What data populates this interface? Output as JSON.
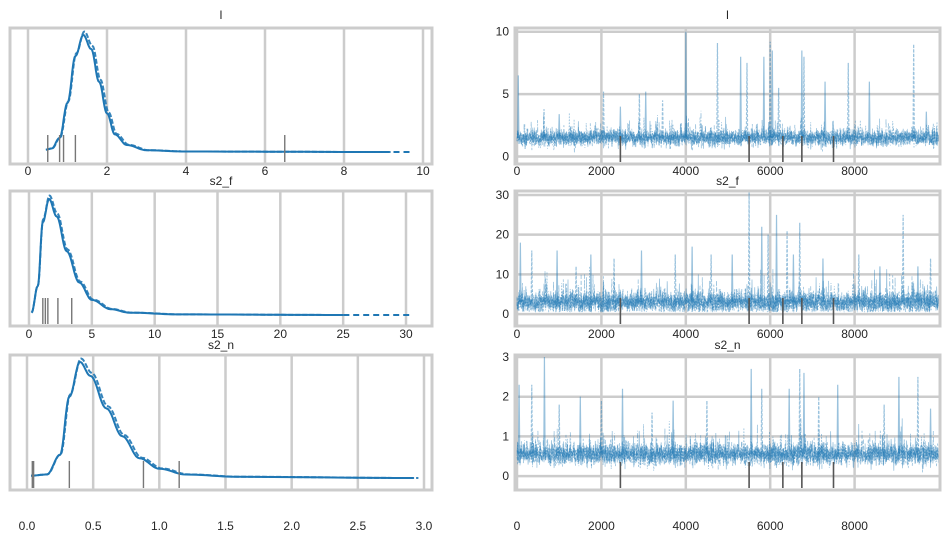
{
  "chart_data": [
    {
      "type": "line",
      "kind": "kde",
      "title": "l",
      "xlim": [
        0,
        10
      ],
      "xticks": [
        0,
        2,
        4,
        6,
        8,
        10
      ],
      "grid": "vertical",
      "color": "#1f77b4",
      "kde": [
        [
          0.45,
          0.02
        ],
        [
          0.6,
          0.03
        ],
        [
          0.8,
          0.12
        ],
        [
          1.0,
          0.42
        ],
        [
          1.2,
          0.82
        ],
        [
          1.4,
          1.0
        ],
        [
          1.6,
          0.88
        ],
        [
          1.8,
          0.6
        ],
        [
          2.0,
          0.33
        ],
        [
          2.2,
          0.15
        ],
        [
          2.5,
          0.06
        ],
        [
          3.0,
          0.015
        ],
        [
          4.0,
          0.004
        ],
        [
          9.0,
          0.0
        ]
      ],
      "tail_dashed_to": 9.7,
      "rug": [
        0.5,
        0.8,
        0.9,
        1.2,
        6.5
      ]
    },
    {
      "type": "line",
      "kind": "kde",
      "title": "s2_f",
      "xlim": [
        0,
        30
      ],
      "xticks": [
        0,
        5,
        10,
        15,
        20,
        25,
        30
      ],
      "grid": "vertical",
      "color": "#1f77b4",
      "kde": [
        [
          0.2,
          0.02
        ],
        [
          0.7,
          0.25
        ],
        [
          1.1,
          0.8
        ],
        [
          1.6,
          1.0
        ],
        [
          2.2,
          0.85
        ],
        [
          3.0,
          0.55
        ],
        [
          4.0,
          0.28
        ],
        [
          5.0,
          0.13
        ],
        [
          6.5,
          0.05
        ],
        [
          8.0,
          0.02
        ],
        [
          12.0,
          0.005
        ],
        [
          25.0,
          0.0
        ]
      ],
      "tail_dashed_to": 30.5,
      "rug": [
        1.1,
        1.3,
        1.5,
        2.3,
        3.4
      ]
    },
    {
      "type": "line",
      "kind": "kde",
      "title": "s2_n",
      "xlim": [
        0,
        3
      ],
      "xticks": [
        0.0,
        0.5,
        1.0,
        1.5,
        2.0,
        2.5,
        3.0
      ],
      "xticklabels": [
        "0.0",
        "0.5",
        "1.0",
        "1.5",
        "2.0",
        "2.5",
        "3.0"
      ],
      "grid": "vertical",
      "color": "#1f77b4",
      "kde": [
        [
          0.03,
          0.02
        ],
        [
          0.15,
          0.03
        ],
        [
          0.25,
          0.2
        ],
        [
          0.32,
          0.7
        ],
        [
          0.4,
          1.0
        ],
        [
          0.48,
          0.88
        ],
        [
          0.6,
          0.6
        ],
        [
          0.72,
          0.36
        ],
        [
          0.85,
          0.17
        ],
        [
          1.0,
          0.08
        ],
        [
          1.2,
          0.03
        ],
        [
          1.6,
          0.01
        ],
        [
          2.9,
          0.0
        ]
      ],
      "tail_dashed_to": 2.92,
      "rug": [
        0.04,
        0.05,
        0.32,
        0.88,
        1.15
      ]
    },
    {
      "type": "line",
      "kind": "trace",
      "title": "l",
      "xlim": [
        0,
        10000
      ],
      "xticks": [
        0,
        2000,
        4000,
        6000,
        8000
      ],
      "ylim": [
        -0.6,
        10.3
      ],
      "yticks": [
        0,
        5,
        10
      ],
      "grid": "both",
      "color": "#1f77b4",
      "chains": 4,
      "draws": 10000,
      "typical_center": 1.5,
      "typical_spread": 0.6,
      "spikes": [
        [
          30,
          6.5
        ],
        [
          640,
          3.8
        ],
        [
          1000,
          3.4
        ],
        [
          2050,
          5.2
        ],
        [
          2450,
          4
        ],
        [
          2900,
          5
        ],
        [
          3050,
          5.2
        ],
        [
          3450,
          4.5
        ],
        [
          4000,
          10
        ],
        [
          4750,
          9.1
        ],
        [
          5300,
          8
        ],
        [
          5450,
          7.5
        ],
        [
          5850,
          8
        ],
        [
          6000,
          9.2
        ],
        [
          6050,
          8.5
        ],
        [
          6200,
          5.5
        ],
        [
          6750,
          8.5
        ],
        [
          6800,
          8
        ],
        [
          7300,
          6
        ],
        [
          7850,
          7.5
        ],
        [
          8350,
          6
        ],
        [
          9400,
          9
        ],
        [
          9700,
          3.6
        ]
      ],
      "divergences": [
        2450,
        5500,
        6300,
        6750,
        7500
      ]
    },
    {
      "type": "line",
      "kind": "trace",
      "title": "s2_f",
      "xlim": [
        0,
        10000
      ],
      "xticks": [
        0,
        2000,
        4000,
        6000,
        8000
      ],
      "ylim": [
        -3,
        31
      ],
      "yticks": [
        0,
        10,
        20,
        30
      ],
      "grid": "both",
      "color": "#1f77b4",
      "chains": 4,
      "draws": 10000,
      "typical_center": 3,
      "typical_spread": 2.5,
      "spikes": [
        [
          80,
          18
        ],
        [
          350,
          16
        ],
        [
          950,
          16
        ],
        [
          1400,
          12
        ],
        [
          1750,
          15
        ],
        [
          2300,
          14
        ],
        [
          2950,
          16
        ],
        [
          3750,
          15
        ],
        [
          4150,
          17
        ],
        [
          4600,
          15
        ],
        [
          5100,
          15
        ],
        [
          5500,
          31
        ],
        [
          5800,
          22
        ],
        [
          5950,
          20
        ],
        [
          6150,
          25
        ],
        [
          6400,
          21
        ],
        [
          6550,
          15
        ],
        [
          6700,
          23
        ],
        [
          7250,
          14
        ],
        [
          8100,
          15
        ],
        [
          8600,
          12
        ],
        [
          9150,
          25
        ],
        [
          9500,
          12
        ],
        [
          9800,
          14
        ]
      ],
      "divergences": [
        2450,
        5500,
        6300,
        6750,
        7500
      ]
    },
    {
      "type": "line",
      "kind": "trace",
      "title": "s2_n",
      "xlim": [
        0,
        10000
      ],
      "xticks": [
        0,
        2000,
        4000,
        6000,
        8000
      ],
      "ylim": [
        -0.35,
        3.05
      ],
      "yticks": [
        0,
        1,
        2,
        3
      ],
      "grid": "both",
      "color": "#1f77b4",
      "chains": 4,
      "draws": 10000,
      "typical_center": 0.55,
      "typical_spread": 0.25,
      "spikes": [
        [
          50,
          2.3
        ],
        [
          350,
          2.3
        ],
        [
          650,
          3.0
        ],
        [
          1000,
          1.8
        ],
        [
          1500,
          2
        ],
        [
          2000,
          1.9
        ],
        [
          2500,
          2.2
        ],
        [
          3200,
          1.6
        ],
        [
          3700,
          1.9
        ],
        [
          4500,
          1.9
        ],
        [
          5550,
          2.7
        ],
        [
          5800,
          2.2
        ],
        [
          6450,
          2.2
        ],
        [
          6700,
          2.7
        ],
        [
          6800,
          2.6
        ],
        [
          7150,
          2
        ],
        [
          7600,
          2.3
        ],
        [
          8700,
          1.8
        ],
        [
          9050,
          2.5
        ],
        [
          9500,
          2.5
        ],
        [
          9800,
          1.7
        ]
      ],
      "divergences": [
        2450,
        5500,
        6300,
        6750,
        7500
      ]
    }
  ]
}
